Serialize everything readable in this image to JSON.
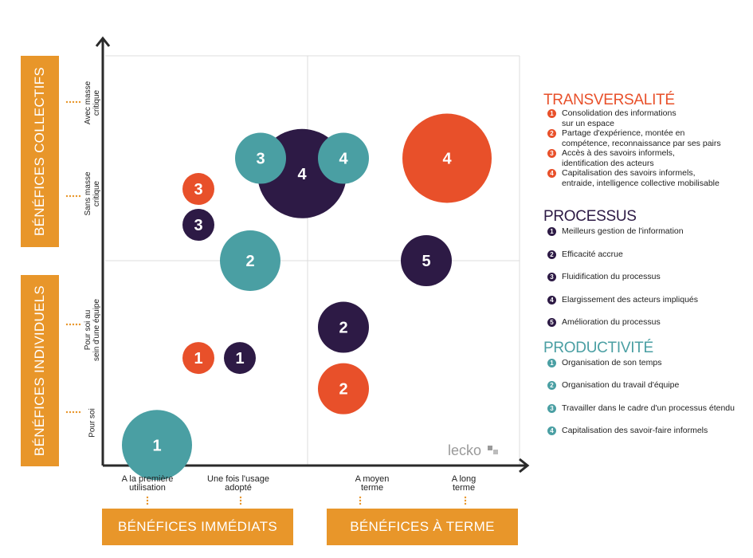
{
  "colors": {
    "teal": "#4a9fa3",
    "purple": "#2d1a45",
    "red": "#e8502a",
    "orange": "#e8962a",
    "grid": "#dcdcdc"
  },
  "chart_data": {
    "type": "bubble",
    "x_categories": [
      "A la première\nutilisation",
      "Une fois l'usage\nadopté",
      "A moyen\nterme",
      "A long\nterme"
    ],
    "y_categories": [
      "Pour soi",
      "Pour soi au\nsein d'une équipe",
      "Sans masse\ncritique",
      "Avec masse\ncritique"
    ],
    "quadrant_labels": {
      "x_left": "BÉNÉFICES IMMÉDIATS",
      "x_right": "BÉNÉFICES À TERME",
      "y_top": "BÉNÉFICES COLLECTIFS",
      "y_bottom": "BÉNÉFICES INDIVIDUELS"
    },
    "series": [
      {
        "name": "TRANSVERSALITÉ",
        "color": "#e8502a",
        "points": [
          {
            "label": "1",
            "x": 0.9,
            "y": 1.05,
            "size": 1
          },
          {
            "label": "2",
            "x": 2.3,
            "y": 0.75,
            "size": 2
          },
          {
            "label": "3",
            "x": 0.9,
            "y": 2.7,
            "size": 1
          },
          {
            "label": "4",
            "x": 3.3,
            "y": 3.0,
            "size": 4
          }
        ]
      },
      {
        "name": "PROCESSUS",
        "color": "#2d1a45",
        "points": [
          {
            "label": "1",
            "x": 1.3,
            "y": 1.05,
            "size": 1
          },
          {
            "label": "2",
            "x": 2.3,
            "y": 1.35,
            "size": 2
          },
          {
            "label": "3",
            "x": 0.9,
            "y": 2.35,
            "size": 1
          },
          {
            "label": "4",
            "x": 1.9,
            "y": 2.85,
            "size": 4
          },
          {
            "label": "5",
            "x": 3.1,
            "y": 2.0,
            "size": 2
          }
        ]
      },
      {
        "name": "PRODUCTIVITÉ",
        "color": "#4a9fa3",
        "points": [
          {
            "label": "1",
            "x": 0.5,
            "y": 0.2,
            "size": 3
          },
          {
            "label": "2",
            "x": 1.4,
            "y": 2.0,
            "size": 2.5
          },
          {
            "label": "3",
            "x": 1.5,
            "y": 3.0,
            "size": 2
          },
          {
            "label": "4",
            "x": 2.3,
            "y": 3.0,
            "size": 2
          }
        ]
      }
    ]
  },
  "legend": [
    {
      "title": "TRANSVERSALITÉ",
      "color": "#e8502a",
      "items": [
        {
          "num": "1",
          "text": "Consolidation des informations\nsur un espace"
        },
        {
          "num": "2",
          "text": "Partage d'expérience, montée en\ncompétence, reconnaissance par ses pairs"
        },
        {
          "num": "3",
          "text": "Accès à des savoirs informels,\nidentification des acteurs"
        },
        {
          "num": "4",
          "text": "Capitalisation des savoirs informels,\nentraide, intelligence collective mobilisable"
        }
      ]
    },
    {
      "title": "PROCESSUS",
      "color": "#2d1a45",
      "items": [
        {
          "num": "1",
          "text": "Meilleurs gestion de l'information"
        },
        {
          "num": "2",
          "text": "Efficacité accrue"
        },
        {
          "num": "3",
          "text": "Fluidification du processus"
        },
        {
          "num": "4",
          "text": "Elargissement des acteurs impliqués"
        },
        {
          "num": "5",
          "text": "Amélioration du processus"
        }
      ]
    },
    {
      "title": "PRODUCTIVITÉ",
      "color": "#4a9fa3",
      "items": [
        {
          "num": "1",
          "text": "Organisation de son temps"
        },
        {
          "num": "2",
          "text": "Organisation du travail d'équipe"
        },
        {
          "num": "3",
          "text": "Travailler dans le cadre d'un processus étendu"
        },
        {
          "num": "4",
          "text": "Capitalisation des savoir-faire informels"
        }
      ]
    }
  ],
  "watermark": "lecko"
}
